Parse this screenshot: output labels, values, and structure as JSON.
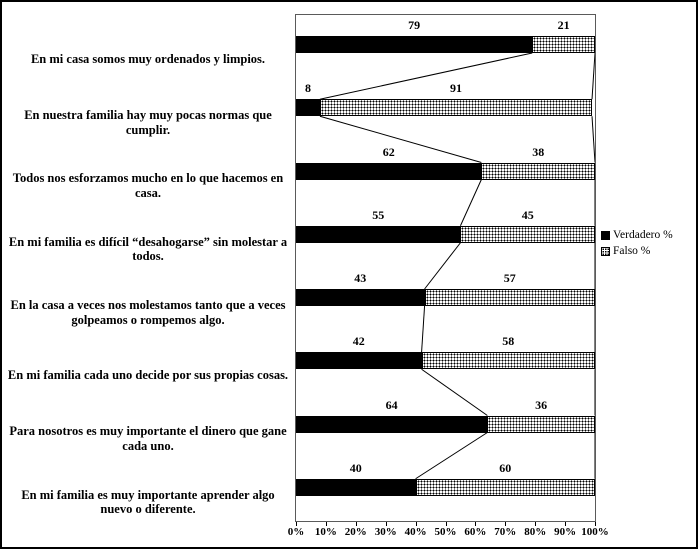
{
  "chart_data": {
    "type": "bar",
    "orientation": "horizontal",
    "stacked": true,
    "title": "",
    "categories": [
      "En mi casa somos muy ordenados y limpios.",
      "En nuestra familia hay muy pocas normas que cumplir.",
      "Todos nos esforzamos mucho en lo que hacemos en casa.",
      "En mi familia es difícil “desahogarse” sin molestar a todos.",
      "En la casa a veces nos molestamos tanto que a veces golpeamos o rompemos algo.",
      "En mi familia cada uno decide por sus propias cosas.",
      "Para nosotros es muy importante el dinero que gane cada uno.",
      "En mi familia es muy importante aprender algo nuevo o diferente."
    ],
    "series": [
      {
        "name": "Verdadero %",
        "values": [
          79,
          8,
          62,
          55,
          43,
          42,
          64,
          40
        ],
        "fill": "solid-black"
      },
      {
        "name": "Falso %",
        "values": [
          21,
          91,
          38,
          45,
          57,
          58,
          36,
          60
        ],
        "fill": "dot-pattern"
      }
    ],
    "x_ticks": [
      "0%",
      "10%",
      "20%",
      "30%",
      "40%",
      "50%",
      "60%",
      "70%",
      "80%",
      "90%",
      "100%"
    ],
    "xlim": [
      0,
      100
    ],
    "grid": false,
    "legend_position": "right",
    "series_lines": true,
    "colors": {
      "verdadero_fill": "#000000",
      "falso_pattern_fg": "#000000",
      "falso_pattern_bg": "#ffffff",
      "axis": "#000000",
      "background": "#ffffff"
    }
  }
}
